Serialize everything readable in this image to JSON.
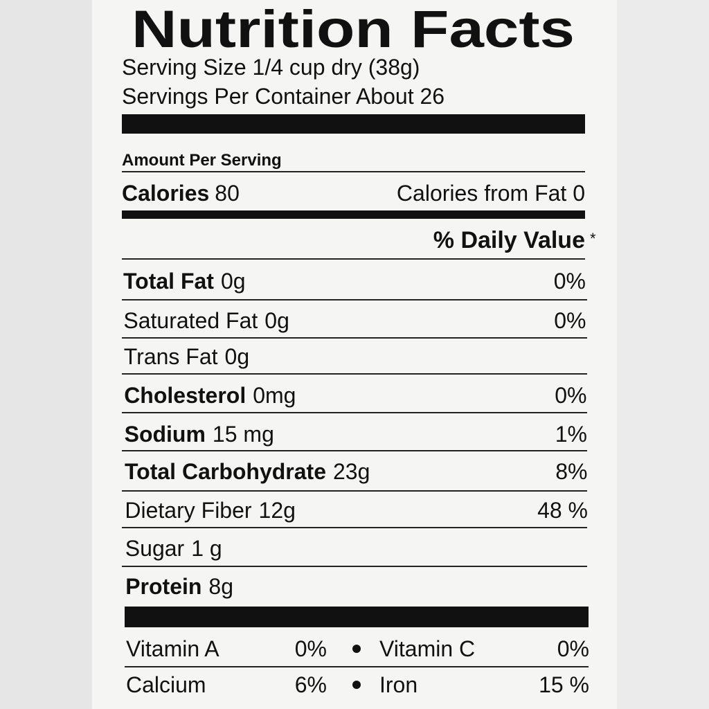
{
  "title": "Nutrition Facts",
  "serving_size": "Serving Size 1/4 cup dry (38g)",
  "servings_per_container": "Servings Per Container About 26",
  "amount_per_serving": "Amount Per Serving",
  "calories": {
    "label": "Calories",
    "value": "80",
    "from_fat": "Calories from Fat 0"
  },
  "daily_value_header": "% Daily Value",
  "footnote_mark": "*",
  "nutrients": [
    {
      "name": "Total Fat",
      "amount": "0g",
      "dv": "0%"
    },
    {
      "name": "Saturated Fat",
      "amount": "0g",
      "dv": "0%"
    },
    {
      "name": "Trans Fat",
      "amount": "0g"
    },
    {
      "name": "Cholesterol",
      "amount": "0mg",
      "dv": "0%"
    },
    {
      "name": "Sodium",
      "amount": "15 mg",
      "dv": "1%"
    },
    {
      "name": "Total Carbohydrate",
      "amount": "23g",
      "dv": "8%"
    },
    {
      "name": "Dietary Fiber",
      "amount": "12g",
      "dv": "48 %"
    },
    {
      "name": "Sugar",
      "amount": "1 g"
    },
    {
      "name": "Protein",
      "amount": "8g"
    }
  ],
  "vitamins": [
    [
      {
        "name": "Vitamin A",
        "dv": "0%"
      },
      {
        "name": "Vitamin C",
        "dv": "0%"
      }
    ],
    [
      {
        "name": "Calcium",
        "dv": "6%"
      },
      {
        "name": "Iron",
        "dv": "15 %"
      }
    ]
  ]
}
